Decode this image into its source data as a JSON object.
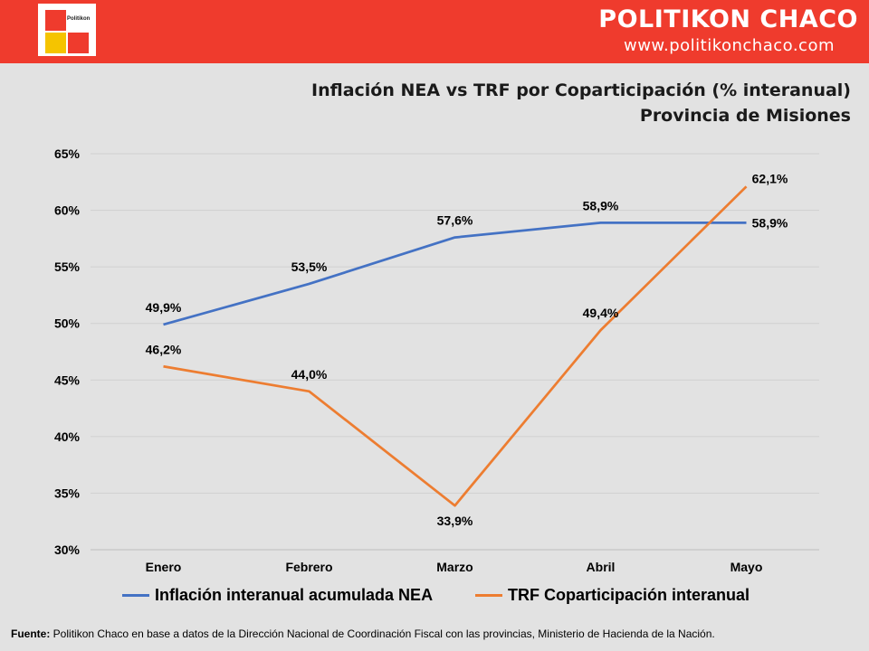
{
  "header": {
    "logo_text": "Politikon",
    "brand": "POLITIKON CHACO",
    "url": "www.politikonchaco.com"
  },
  "colors": {
    "header_red": "#ef3b2d",
    "background": "#e2e2e2",
    "series_blue": "#4472c4",
    "series_orange": "#ed7d31"
  },
  "chart_data": {
    "type": "line",
    "title": "Inflación NEA vs TRF por Coparticipación (% interanual)",
    "subtitle": "Provincia de Misiones",
    "categories": [
      "Enero",
      "Febrero",
      "Marzo",
      "Abril",
      "Mayo"
    ],
    "series": [
      {
        "name": "Inflación interanual acumulada NEA",
        "color": "#4472c4",
        "values": [
          49.9,
          53.5,
          57.6,
          58.9,
          58.9
        ],
        "labels": [
          "49,9%",
          "53,5%",
          "57,6%",
          "58,9%",
          "58,9%"
        ]
      },
      {
        "name": "TRF Coparticipación interanual",
        "color": "#ed7d31",
        "values": [
          46.2,
          44.0,
          33.9,
          49.4,
          62.1
        ],
        "labels": [
          "46,2%",
          "44,0%",
          "33,9%",
          "49,4%",
          "62,1%"
        ]
      }
    ],
    "ylim": [
      30,
      65
    ],
    "yticks": [
      "30%",
      "35%",
      "40%",
      "45%",
      "50%",
      "55%",
      "60%",
      "65%"
    ],
    "grid": true,
    "legend_position": "bottom"
  },
  "footer": {
    "source_label": "Fuente:",
    "source_text": " Politikon Chaco en base a datos de la Dirección Nacional de Coordinación Fiscal con las provincias, Ministerio de Hacienda de la Nación."
  }
}
